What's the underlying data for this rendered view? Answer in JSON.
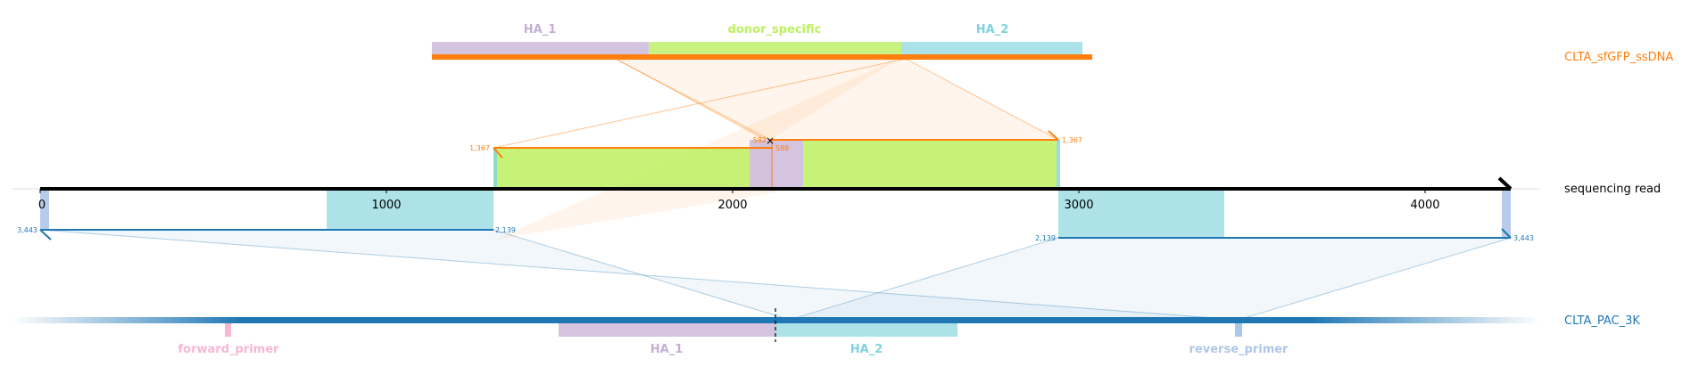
{
  "ssdna": {
    "name": "CLTA_sfGFP_ssDNA",
    "features": [
      {
        "name": "HA_1",
        "color": "#c5b0d5"
      },
      {
        "name": "donor_specific",
        "color": "#bcf060"
      },
      {
        "name": "HA_2",
        "color": "#7fd3dc"
      }
    ],
    "color": "#ff7f0e"
  },
  "read": {
    "name": "sequencing read",
    "ticks": [
      "0",
      "1000",
      "2000",
      "3000",
      "4000"
    ],
    "upper_alignment_labels": {
      "left_start": "1,367",
      "mid_end": "582",
      "mid_start": "588",
      "right_end": "1,367"
    },
    "lower_alignment_labels": {
      "left_start": "3,443",
      "left_end": "2,139",
      "right_start": "2,139",
      "right_end": "3,443"
    }
  },
  "reference": {
    "name": "CLTA_PAC_3K",
    "color": "#1f77b4",
    "features": [
      {
        "name": "forward_primer",
        "color": "#f7b6d2"
      },
      {
        "name": "HA_1",
        "color": "#c5b0d5"
      },
      {
        "name": "HA_2",
        "color": "#7fd3dc"
      },
      {
        "name": "reverse_primer",
        "color": "#aec7e8"
      }
    ]
  }
}
